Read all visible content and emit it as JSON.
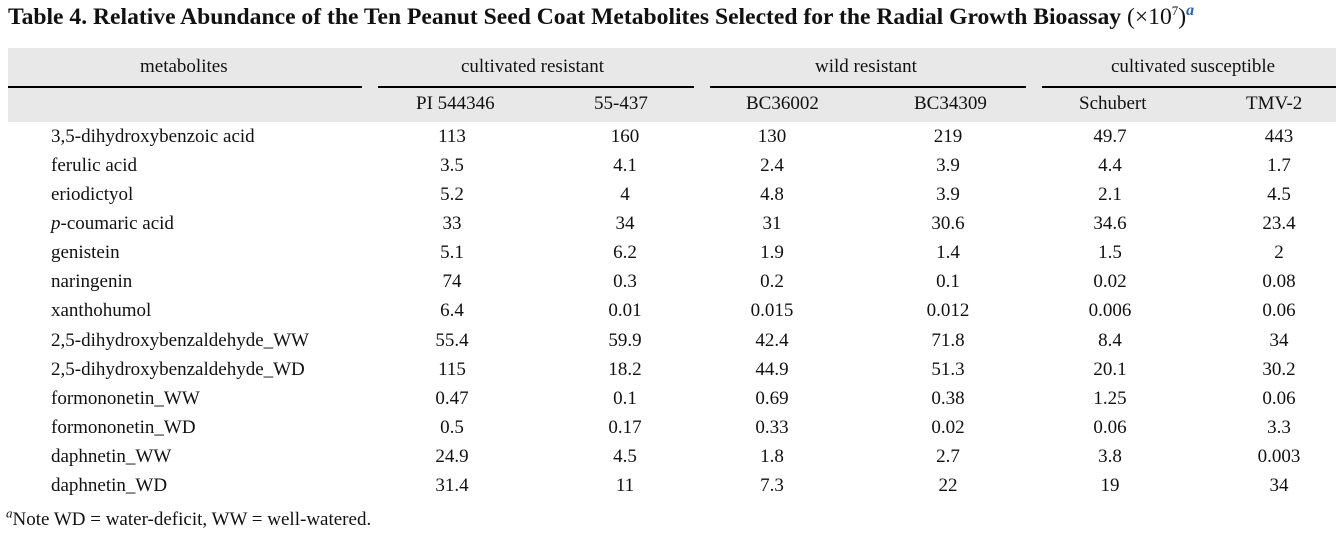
{
  "title": {
    "text": "Table 4. Relative Abundance of the Ten Peanut Seed Coat Metabolites Selected for the Radial Growth Bioassay",
    "multiplier": "(×10",
    "exponent": "7",
    "close": ")",
    "footnote_marker": "a"
  },
  "header": {
    "metabolites": "metabolites",
    "groups": [
      "cultivated resistant",
      "wild resistant",
      "cultivated susceptible"
    ],
    "columns": [
      "PI 544346",
      "55-437",
      "BC36002",
      "BC34309",
      "Schubert",
      "TMV-2"
    ]
  },
  "rows": [
    {
      "name": "3,5-dihydroxybenzoic acid",
      "values": [
        "113",
        "160",
        "130",
        "219",
        "49.7",
        "443"
      ]
    },
    {
      "name": "ferulic acid",
      "values": [
        "3.5",
        "4.1",
        "2.4",
        "3.9",
        "4.4",
        "1.7"
      ]
    },
    {
      "name": "eriodictyol",
      "values": [
        "5.2",
        "4",
        "4.8",
        "3.9",
        "2.1",
        "4.5"
      ]
    },
    {
      "name_italic": "p",
      "name": "-coumaric acid",
      "values": [
        "33",
        "34",
        "31",
        "30.6",
        "34.6",
        "23.4"
      ]
    },
    {
      "name": "genistein",
      "values": [
        "5.1",
        "6.2",
        "1.9",
        "1.4",
        "1.5",
        "2"
      ]
    },
    {
      "name": "naringenin",
      "values": [
        "74",
        "0.3",
        "0.2",
        "0.1",
        "0.02",
        "0.08"
      ]
    },
    {
      "name": "xanthohumol",
      "values": [
        "6.4",
        "0.01",
        "0.015",
        "0.012",
        "0.006",
        "0.06"
      ]
    },
    {
      "name": "2,5-dihydroxybenzaldehyde_WW",
      "values": [
        "55.4",
        "59.9",
        "42.4",
        "71.8",
        "8.4",
        "34"
      ]
    },
    {
      "name": "2,5-dihydroxybenzaldehyde_WD",
      "values": [
        "115",
        "18.2",
        "44.9",
        "51.3",
        "20.1",
        "30.2"
      ]
    },
    {
      "name": "formononetin_WW",
      "values": [
        "0.47",
        "0.1",
        "0.69",
        "0.38",
        "1.25",
        "0.06"
      ]
    },
    {
      "name": "formononetin_WD",
      "values": [
        "0.5",
        "0.17",
        "0.33",
        "0.02",
        "0.06",
        "3.3"
      ]
    },
    {
      "name": "daphnetin_WW",
      "values": [
        "24.9",
        "4.5",
        "1.8",
        "2.7",
        "3.8",
        "0.003"
      ]
    },
    {
      "name": "daphnetin_WD",
      "values": [
        "31.4",
        "11",
        "7.3",
        "22",
        "19",
        "34"
      ]
    }
  ],
  "note": {
    "marker": "a",
    "text": "Note WD = water-deficit, WW = well-watered."
  }
}
